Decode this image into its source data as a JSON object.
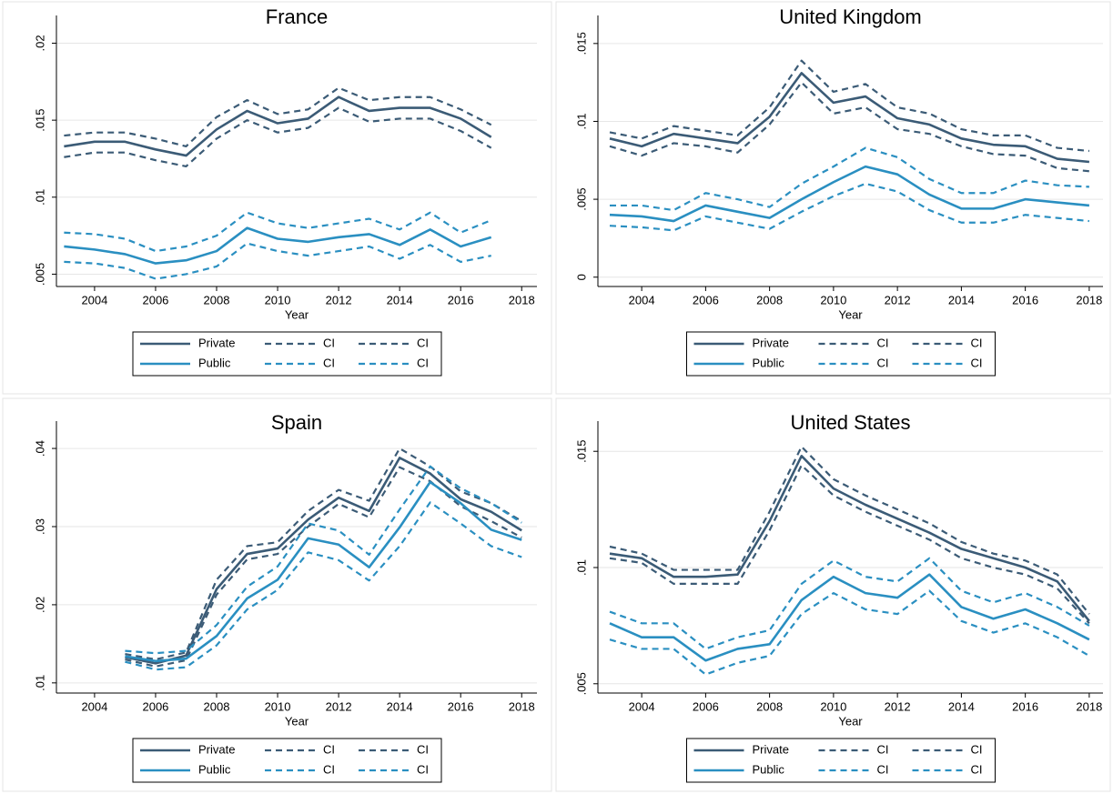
{
  "chart_data": [
    {
      "type": "line",
      "title": "France",
      "xlabel": "Year",
      "x": [
        2003,
        2004,
        2005,
        2006,
        2007,
        2008,
        2009,
        2010,
        2011,
        2012,
        2013,
        2014,
        2015,
        2016,
        2017
      ],
      "series": [
        {
          "name": "Private",
          "color": "#3b5b76",
          "dashed": false,
          "values": [
            0.0133,
            0.0136,
            0.0136,
            0.0131,
            0.0127,
            0.0144,
            0.0156,
            0.0148,
            0.0151,
            0.0165,
            0.0156,
            0.0158,
            0.0158,
            0.0151,
            0.0139
          ]
        },
        {
          "name": "CI",
          "color": "#3b5b76",
          "dashed": true,
          "values": [
            0.014,
            0.0142,
            0.0142,
            0.0138,
            0.0133,
            0.0152,
            0.0163,
            0.0154,
            0.0157,
            0.0171,
            0.0163,
            0.0165,
            0.0165,
            0.0157,
            0.0147
          ]
        },
        {
          "name": "CI",
          "color": "#3b5b76",
          "dashed": true,
          "values": [
            0.0126,
            0.0129,
            0.0129,
            0.0124,
            0.012,
            0.0138,
            0.015,
            0.0142,
            0.0145,
            0.0158,
            0.0149,
            0.0151,
            0.0151,
            0.0143,
            0.0132
          ]
        },
        {
          "name": "Public",
          "color": "#2a8fc1",
          "dashed": false,
          "values": [
            0.0068,
            0.0066,
            0.0063,
            0.0057,
            0.0059,
            0.0065,
            0.008,
            0.0073,
            0.0071,
            0.0074,
            0.0076,
            0.0069,
            0.0079,
            0.0068,
            0.0074
          ]
        },
        {
          "name": "CI",
          "color": "#2a8fc1",
          "dashed": true,
          "values": [
            0.0077,
            0.0076,
            0.0073,
            0.0065,
            0.0068,
            0.0075,
            0.009,
            0.0083,
            0.008,
            0.0083,
            0.0086,
            0.0079,
            0.009,
            0.0077,
            0.0085
          ]
        },
        {
          "name": "CI",
          "color": "#2a8fc1",
          "dashed": true,
          "values": [
            0.0058,
            0.0057,
            0.0054,
            0.0047,
            0.005,
            0.0055,
            0.007,
            0.0065,
            0.0062,
            0.0065,
            0.0068,
            0.006,
            0.0069,
            0.0058,
            0.0062
          ]
        }
      ],
      "xlim": [
        2002.75,
        2018.5
      ],
      "ylim": [
        0.0042,
        0.0218
      ],
      "xticks": [
        2004,
        2006,
        2008,
        2010,
        2012,
        2014,
        2016,
        2018
      ],
      "yticks": [
        {
          "value": 0.005,
          "label": ".005"
        },
        {
          "value": 0.01,
          "label": ".01"
        },
        {
          "value": 0.015,
          "label": ".015"
        },
        {
          "value": 0.02,
          "label": ".02"
        }
      ],
      "grid": true,
      "legend_position": "bottom"
    },
    {
      "type": "line",
      "title": "United Kingdom",
      "xlabel": "Year",
      "x": [
        2003,
        2004,
        2005,
        2006,
        2007,
        2008,
        2009,
        2010,
        2011,
        2012,
        2013,
        2014,
        2015,
        2016,
        2017,
        2018
      ],
      "series": [
        {
          "name": "Private",
          "color": "#3b5b76",
          "dashed": false,
          "values": [
            0.0089,
            0.0084,
            0.0092,
            0.0089,
            0.0086,
            0.0103,
            0.0131,
            0.0112,
            0.0116,
            0.0102,
            0.0098,
            0.0089,
            0.0085,
            0.0084,
            0.0076,
            0.0074
          ]
        },
        {
          "name": "CI",
          "color": "#3b5b76",
          "dashed": true,
          "values": [
            0.0093,
            0.0089,
            0.0097,
            0.0094,
            0.0091,
            0.0109,
            0.0139,
            0.0119,
            0.0124,
            0.0109,
            0.0105,
            0.0095,
            0.0091,
            0.0091,
            0.0083,
            0.0081
          ]
        },
        {
          "name": "CI",
          "color": "#3b5b76",
          "dashed": true,
          "values": [
            0.0084,
            0.0078,
            0.0086,
            0.0084,
            0.008,
            0.0098,
            0.0125,
            0.0105,
            0.0109,
            0.0095,
            0.0092,
            0.0084,
            0.0079,
            0.0078,
            0.007,
            0.0068
          ]
        },
        {
          "name": "Public",
          "color": "#2a8fc1",
          "dashed": false,
          "values": [
            0.004,
            0.0039,
            0.0036,
            0.0046,
            0.0042,
            0.0038,
            0.005,
            0.0061,
            0.0071,
            0.0066,
            0.0053,
            0.0044,
            0.0044,
            0.005,
            0.0048,
            0.0046
          ]
        },
        {
          "name": "CI",
          "color": "#2a8fc1",
          "dashed": true,
          "values": [
            0.0046,
            0.0046,
            0.0043,
            0.0054,
            0.005,
            0.0045,
            0.006,
            0.0071,
            0.0083,
            0.0077,
            0.0063,
            0.0054,
            0.0054,
            0.0062,
            0.0059,
            0.0058
          ]
        },
        {
          "name": "CI",
          "color": "#2a8fc1",
          "dashed": true,
          "values": [
            0.0033,
            0.0032,
            0.003,
            0.0039,
            0.0035,
            0.0031,
            0.0042,
            0.0052,
            0.006,
            0.0055,
            0.0043,
            0.0035,
            0.0035,
            0.004,
            0.0038,
            0.0036
          ]
        }
      ],
      "xlim": [
        2002.63,
        2018.43
      ],
      "ylim": [
        -0.0006,
        0.0168
      ],
      "xticks": [
        2004,
        2006,
        2008,
        2010,
        2012,
        2014,
        2016,
        2018
      ],
      "yticks": [
        0,
        {
          "value": 0.005,
          "label": ".005"
        },
        {
          "value": 0.01,
          "label": ".01"
        },
        {
          "value": 0.015,
          "label": ".015"
        }
      ],
      "grid": true,
      "legend_position": "bottom"
    },
    {
      "type": "line",
      "title": "Spain",
      "xlabel": "Year",
      "x": [
        2005,
        2006,
        2007,
        2008,
        2009,
        2010,
        2011,
        2012,
        2013,
        2014,
        2015,
        2016,
        2017,
        2018
      ],
      "series": [
        {
          "name": "Private",
          "color": "#3b5b76",
          "dashed": false,
          "values": [
            0.0133,
            0.0125,
            0.0135,
            0.022,
            0.0265,
            0.0272,
            0.0309,
            0.0337,
            0.032,
            0.0388,
            0.0368,
            0.0335,
            0.0319,
            0.0295
          ]
        },
        {
          "name": "CI",
          "color": "#3b5b76",
          "dashed": true,
          "values": [
            0.0137,
            0.013,
            0.0139,
            0.0232,
            0.0275,
            0.028,
            0.032,
            0.0347,
            0.0333,
            0.04,
            0.0377,
            0.0345,
            0.033,
            0.0307
          ]
        },
        {
          "name": "CI",
          "color": "#3b5b76",
          "dashed": true,
          "values": [
            0.013,
            0.0121,
            0.0129,
            0.0213,
            0.0258,
            0.0265,
            0.03,
            0.0329,
            0.0312,
            0.0376,
            0.0358,
            0.0326,
            0.0307,
            0.0286
          ]
        },
        {
          "name": "Public",
          "color": "#2a8fc1",
          "dashed": false,
          "values": [
            0.0134,
            0.0128,
            0.0131,
            0.016,
            0.0208,
            0.0232,
            0.0285,
            0.0277,
            0.0248,
            0.0299,
            0.0357,
            0.033,
            0.0296,
            0.0283
          ]
        },
        {
          "name": "CI",
          "color": "#2a8fc1",
          "dashed": true,
          "values": [
            0.0141,
            0.0138,
            0.0141,
            0.0174,
            0.0223,
            0.0249,
            0.0304,
            0.0295,
            0.0264,
            0.0322,
            0.0377,
            0.0349,
            0.033,
            0.0305
          ]
        },
        {
          "name": "CI",
          "color": "#2a8fc1",
          "dashed": true,
          "values": [
            0.0127,
            0.0117,
            0.012,
            0.0148,
            0.0194,
            0.0219,
            0.0267,
            0.0257,
            0.0231,
            0.0275,
            0.0331,
            0.0304,
            0.0275,
            0.0261
          ]
        }
      ],
      "xlim": [
        2002.75,
        2018.5
      ],
      "ylim": [
        0.0087,
        0.0435
      ],
      "xticks": [
        2004,
        2006,
        2008,
        2010,
        2012,
        2014,
        2016,
        2018
      ],
      "yticks": [
        {
          "value": 0.01,
          "label": ".01"
        },
        {
          "value": 0.02,
          "label": ".02"
        },
        {
          "value": 0.03,
          "label": ".03"
        },
        {
          "value": 0.04,
          "label": ".04"
        }
      ],
      "grid": true,
      "legend_position": "bottom"
    },
    {
      "type": "line",
      "title": "United States",
      "xlabel": "Year",
      "x": [
        2003,
        2004,
        2005,
        2006,
        2007,
        2008,
        2009,
        2010,
        2011,
        2012,
        2013,
        2014,
        2015,
        2016,
        2017,
        2018
      ],
      "series": [
        {
          "name": "Private",
          "color": "#3b5b76",
          "dashed": false,
          "values": [
            0.0106,
            0.0104,
            0.0096,
            0.0096,
            0.0097,
            0.012,
            0.0148,
            0.0134,
            0.0127,
            0.0121,
            0.0115,
            0.0108,
            0.0104,
            0.01,
            0.0094,
            0.0077
          ]
        },
        {
          "name": "CI",
          "color": "#3b5b76",
          "dashed": true,
          "values": [
            0.0109,
            0.0106,
            0.0099,
            0.0099,
            0.0099,
            0.0124,
            0.0152,
            0.0138,
            0.0131,
            0.0125,
            0.0119,
            0.0111,
            0.0106,
            0.0103,
            0.0097,
            0.008
          ]
        },
        {
          "name": "CI",
          "color": "#3b5b76",
          "dashed": true,
          "values": [
            0.0104,
            0.0102,
            0.0093,
            0.0093,
            0.0093,
            0.0116,
            0.0144,
            0.0131,
            0.0124,
            0.0118,
            0.0112,
            0.0104,
            0.01,
            0.0097,
            0.0091,
            0.0076
          ]
        },
        {
          "name": "Public",
          "color": "#2a8fc1",
          "dashed": false,
          "values": [
            0.0076,
            0.007,
            0.007,
            0.006,
            0.0065,
            0.0067,
            0.0086,
            0.0096,
            0.0089,
            0.0087,
            0.0097,
            0.0083,
            0.0078,
            0.0082,
            0.0076,
            0.0069
          ]
        },
        {
          "name": "CI",
          "color": "#2a8fc1",
          "dashed": true,
          "values": [
            0.0081,
            0.0076,
            0.0076,
            0.0065,
            0.007,
            0.0073,
            0.0093,
            0.0103,
            0.0096,
            0.0094,
            0.0104,
            0.009,
            0.0085,
            0.0089,
            0.0083,
            0.0075
          ]
        },
        {
          "name": "CI",
          "color": "#2a8fc1",
          "dashed": true,
          "values": [
            0.0069,
            0.0065,
            0.0065,
            0.0054,
            0.0059,
            0.0062,
            0.008,
            0.0089,
            0.0082,
            0.008,
            0.009,
            0.0077,
            0.0072,
            0.0076,
            0.007,
            0.0062
          ]
        }
      ],
      "xlim": [
        2002.63,
        2018.43
      ],
      "ylim": [
        0.0046,
        0.0163
      ],
      "xticks": [
        2004,
        2006,
        2008,
        2010,
        2012,
        2014,
        2016,
        2018
      ],
      "yticks": [
        {
          "value": 0.005,
          "label": ".005"
        },
        {
          "value": 0.01,
          "label": ".01"
        },
        {
          "value": 0.015,
          "label": ".015"
        }
      ],
      "grid": true,
      "legend_position": "bottom"
    }
  ]
}
